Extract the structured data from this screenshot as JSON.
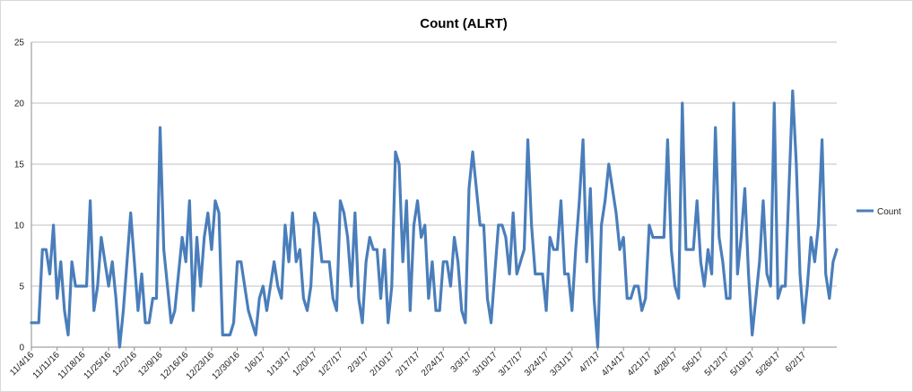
{
  "chart_data": {
    "type": "line",
    "title": "Count (ALRT)",
    "xlabel": "",
    "ylabel": "",
    "ylim": [
      0,
      25
    ],
    "y_ticks": [
      0,
      5,
      10,
      15,
      20,
      25
    ],
    "grid": true,
    "legend_position": "right",
    "color": "#4a7ebb",
    "x_tick_labels": [
      "11/4/16",
      "11/11/16",
      "11/18/16",
      "11/25/16",
      "12/2/16",
      "12/9/16",
      "12/16/16",
      "12/23/16",
      "12/30/16",
      "1/6/17",
      "1/13/17",
      "1/20/17",
      "1/27/17",
      "2/3/17",
      "2/10/17",
      "2/17/17",
      "2/24/17",
      "3/3/17",
      "3/10/17",
      "3/17/17",
      "3/24/17",
      "3/31/17",
      "4/7/17",
      "4/14/17",
      "4/21/17",
      "4/28/17",
      "5/5/17",
      "5/12/17",
      "5/19/17",
      "5/26/17",
      "6/2/17"
    ],
    "series": [
      {
        "name": "Count",
        "values": [
          2,
          2,
          2,
          8,
          8,
          6,
          10,
          4,
          7,
          3,
          1,
          7,
          5,
          5,
          5,
          5,
          12,
          3,
          5,
          9,
          7,
          5,
          7,
          4,
          0,
          3,
          7,
          11,
          7,
          3,
          6,
          2,
          2,
          4,
          4,
          18,
          8,
          5,
          2,
          3,
          6,
          9,
          7,
          12,
          3,
          9,
          5,
          9,
          11,
          8,
          12,
          11,
          1,
          1,
          1,
          2,
          7,
          7,
          5,
          3,
          2,
          1,
          4,
          5,
          3,
          5,
          7,
          5,
          4,
          10,
          7,
          11,
          7,
          8,
          4,
          3,
          5,
          11,
          10,
          7,
          7,
          7,
          4,
          3,
          12,
          11,
          9,
          5,
          11,
          4,
          2,
          7,
          9,
          8,
          8,
          4,
          8,
          2,
          5,
          16,
          15,
          7,
          12,
          3,
          10,
          12,
          9,
          10,
          4,
          7,
          3,
          3,
          7,
          7,
          5,
          9,
          7,
          3,
          2,
          13,
          16,
          13,
          10,
          10,
          4,
          2,
          6,
          10,
          10,
          9,
          6,
          11,
          6,
          7,
          8,
          17,
          10,
          6,
          6,
          6,
          3,
          9,
          8,
          8,
          12,
          6,
          6,
          3,
          8,
          12,
          17,
          7,
          13,
          4,
          0,
          10,
          12,
          15,
          13,
          11,
          8,
          9,
          4,
          4,
          5,
          5,
          3,
          4,
          10,
          9,
          9,
          9,
          9,
          17,
          8,
          5,
          4,
          20,
          8,
          8,
          8,
          12,
          7,
          5,
          8,
          6,
          18,
          9,
          7,
          4,
          4,
          20,
          6,
          9,
          13,
          6,
          1,
          4,
          7,
          12,
          6,
          5,
          20,
          4,
          5,
          5,
          13,
          21,
          15,
          6,
          2,
          5,
          9,
          7,
          10,
          17,
          6,
          4,
          7,
          8
        ]
      }
    ]
  }
}
